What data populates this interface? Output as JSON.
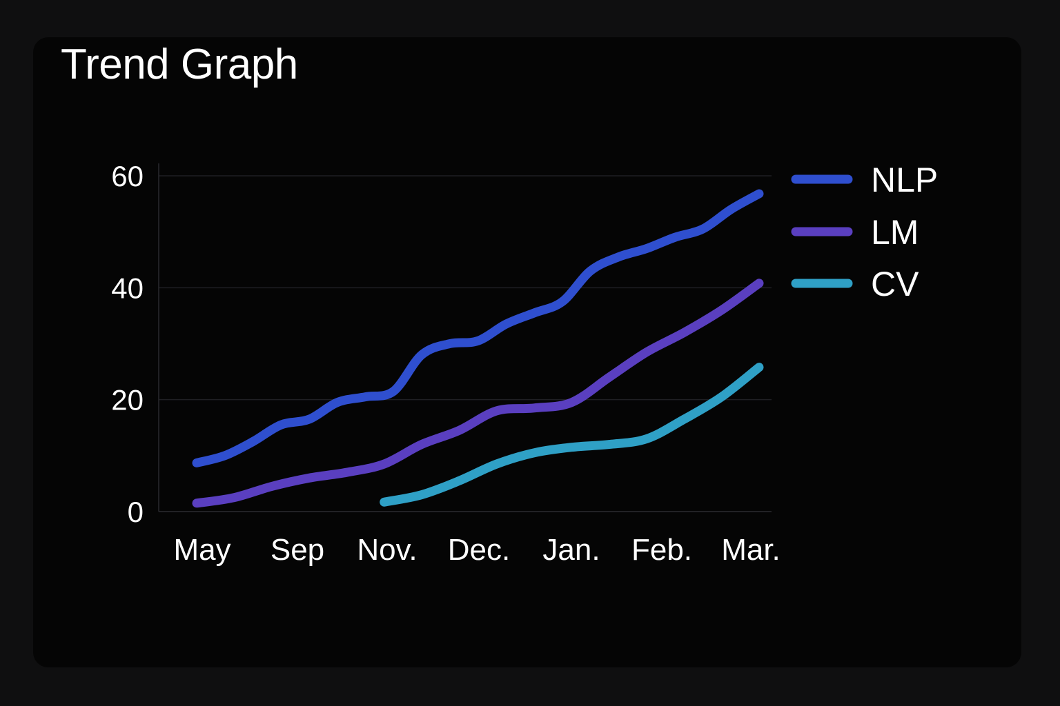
{
  "chart_data": {
    "type": "line",
    "title": "Trend Graph",
    "xlabel": "",
    "ylabel": "",
    "categories": [
      "May",
      "Sep",
      "Nov.",
      "Dec.",
      "Jan.",
      "Feb.",
      "Mar."
    ],
    "ylim": [
      0,
      60
    ],
    "yticks": [
      0,
      20,
      40,
      60
    ],
    "grid": true,
    "legend_position": "right-top",
    "series": [
      {
        "name": "NLP",
        "color": "#2f4fcf",
        "x": [
          0,
          0.3,
          0.6,
          0.9,
          1.2,
          1.5,
          1.8,
          2.1,
          2.4,
          2.7,
          3.0,
          3.3,
          3.6,
          3.9,
          4.2,
          4.5,
          4.8,
          5.1,
          5.4,
          5.7,
          6.0
        ],
        "values": [
          8.7,
          10,
          12.5,
          15.5,
          16.5,
          19.5,
          20.5,
          21.5,
          28,
          30,
          30.5,
          33.5,
          35.5,
          37.5,
          43,
          45.5,
          47,
          49,
          50.5,
          54,
          56.8
        ]
      },
      {
        "name": "LM",
        "color": "#5a3fc0",
        "x": [
          0,
          0.4,
          0.8,
          1.2,
          1.6,
          2.0,
          2.4,
          2.8,
          3.2,
          3.6,
          4.0,
          4.4,
          4.8,
          5.2,
          5.6,
          6.0
        ],
        "values": [
          1.5,
          2.5,
          4.5,
          6,
          7,
          8.5,
          12,
          14.5,
          18,
          18.5,
          19.5,
          24,
          28.5,
          32,
          36,
          40.8
        ]
      },
      {
        "name": "CV",
        "color": "#2fa0c6",
        "x": [
          2.0,
          2.4,
          2.8,
          3.2,
          3.6,
          4.0,
          4.4,
          4.8,
          5.2,
          5.6,
          6.0
        ],
        "values": [
          1.7,
          3,
          5.5,
          8.5,
          10.5,
          11.5,
          12,
          13,
          16.5,
          20.5,
          25.8
        ]
      }
    ]
  }
}
